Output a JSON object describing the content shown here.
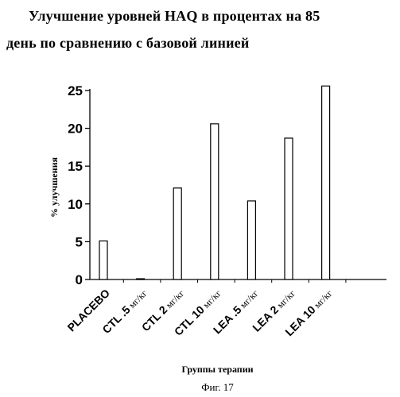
{
  "chart_data": {
    "type": "bar",
    "title_line1": "Улучшение уровней HAQ в процентах на 85",
    "title_line2": "день по сравнению с базовой линией",
    "ylabel": "% улучшения",
    "xlabel": "Группы терапии",
    "categories": [
      {
        "main": "PLACEBO",
        "dose": ""
      },
      {
        "main": "CTL .5",
        "dose": "мг/кг"
      },
      {
        "main": "CTL 2",
        "dose": "мг/кг"
      },
      {
        "main": "CTL 10",
        "dose": "мг/кг"
      },
      {
        "main": "LEA .5",
        "dose": "мг/кг"
      },
      {
        "main": "LEA 2",
        "dose": "мг/кг"
      },
      {
        "main": "LEA 10",
        "dose": "мг/кг"
      }
    ],
    "values": [
      5.1,
      0.1,
      12.1,
      20.6,
      10.4,
      18.7,
      25.6
    ],
    "yticks": [
      "0",
      "5",
      "10",
      "15",
      "20",
      "25"
    ],
    "ylim": [
      0,
      25
    ],
    "grid": false
  },
  "figure_caption": "Фиг. 17"
}
